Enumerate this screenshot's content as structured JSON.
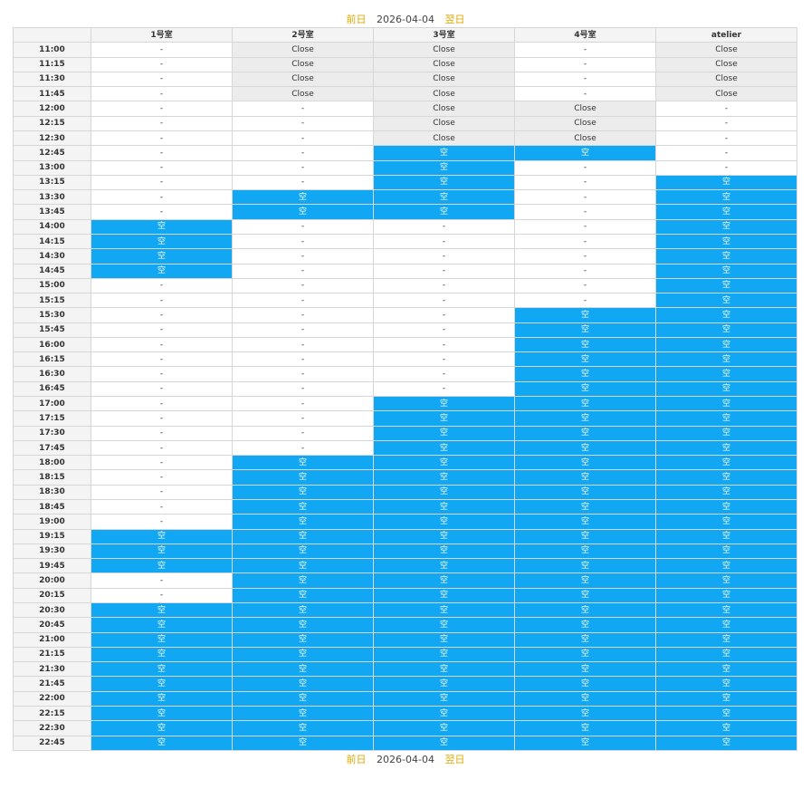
{
  "nav": {
    "prev_label": "前日",
    "date": "2026-04-04",
    "next_label": "翌日"
  },
  "table": {
    "corner_label": "",
    "rooms": [
      "1号室",
      "2号室",
      "3号室",
      "4号室",
      "atelier"
    ],
    "legend": {
      "none": "-",
      "close": "Close",
      "free": "空"
    },
    "colors": {
      "free": "#11a7f3",
      "close": "#ececec",
      "none": "#ffffff",
      "nav_link": "#e0a800"
    },
    "rows": [
      {
        "time": "11:00",
        "slots": [
          "none",
          "close",
          "close",
          "none",
          "close"
        ]
      },
      {
        "time": "11:15",
        "slots": [
          "none",
          "close",
          "close",
          "none",
          "close"
        ]
      },
      {
        "time": "11:30",
        "slots": [
          "none",
          "close",
          "close",
          "none",
          "close"
        ]
      },
      {
        "time": "11:45",
        "slots": [
          "none",
          "close",
          "close",
          "none",
          "close"
        ]
      },
      {
        "time": "12:00",
        "slots": [
          "none",
          "none",
          "close",
          "close",
          "none"
        ]
      },
      {
        "time": "12:15",
        "slots": [
          "none",
          "none",
          "close",
          "close",
          "none"
        ]
      },
      {
        "time": "12:30",
        "slots": [
          "none",
          "none",
          "close",
          "close",
          "none"
        ]
      },
      {
        "time": "12:45",
        "slots": [
          "none",
          "none",
          "free",
          "free",
          "none"
        ]
      },
      {
        "time": "13:00",
        "slots": [
          "none",
          "none",
          "free",
          "none",
          "none"
        ]
      },
      {
        "time": "13:15",
        "slots": [
          "none",
          "none",
          "free",
          "none",
          "free"
        ]
      },
      {
        "time": "13:30",
        "slots": [
          "none",
          "free",
          "free",
          "none",
          "free"
        ]
      },
      {
        "time": "13:45",
        "slots": [
          "none",
          "free",
          "free",
          "none",
          "free"
        ]
      },
      {
        "time": "14:00",
        "slots": [
          "free",
          "none",
          "none",
          "none",
          "free"
        ]
      },
      {
        "time": "14:15",
        "slots": [
          "free",
          "none",
          "none",
          "none",
          "free"
        ]
      },
      {
        "time": "14:30",
        "slots": [
          "free",
          "none",
          "none",
          "none",
          "free"
        ]
      },
      {
        "time": "14:45",
        "slots": [
          "free",
          "none",
          "none",
          "none",
          "free"
        ]
      },
      {
        "time": "15:00",
        "slots": [
          "none",
          "none",
          "none",
          "none",
          "free"
        ]
      },
      {
        "time": "15:15",
        "slots": [
          "none",
          "none",
          "none",
          "none",
          "free"
        ]
      },
      {
        "time": "15:30",
        "slots": [
          "none",
          "none",
          "none",
          "free",
          "free"
        ]
      },
      {
        "time": "15:45",
        "slots": [
          "none",
          "none",
          "none",
          "free",
          "free"
        ]
      },
      {
        "time": "16:00",
        "slots": [
          "none",
          "none",
          "none",
          "free",
          "free"
        ]
      },
      {
        "time": "16:15",
        "slots": [
          "none",
          "none",
          "none",
          "free",
          "free"
        ]
      },
      {
        "time": "16:30",
        "slots": [
          "none",
          "none",
          "none",
          "free",
          "free"
        ]
      },
      {
        "time": "16:45",
        "slots": [
          "none",
          "none",
          "none",
          "free",
          "free"
        ]
      },
      {
        "time": "17:00",
        "slots": [
          "none",
          "none",
          "free",
          "free",
          "free"
        ]
      },
      {
        "time": "17:15",
        "slots": [
          "none",
          "none",
          "free",
          "free",
          "free"
        ]
      },
      {
        "time": "17:30",
        "slots": [
          "none",
          "none",
          "free",
          "free",
          "free"
        ]
      },
      {
        "time": "17:45",
        "slots": [
          "none",
          "none",
          "free",
          "free",
          "free"
        ]
      },
      {
        "time": "18:00",
        "slots": [
          "none",
          "free",
          "free",
          "free",
          "free"
        ]
      },
      {
        "time": "18:15",
        "slots": [
          "none",
          "free",
          "free",
          "free",
          "free"
        ]
      },
      {
        "time": "18:30",
        "slots": [
          "none",
          "free",
          "free",
          "free",
          "free"
        ]
      },
      {
        "time": "18:45",
        "slots": [
          "none",
          "free",
          "free",
          "free",
          "free"
        ]
      },
      {
        "time": "19:00",
        "slots": [
          "none",
          "free",
          "free",
          "free",
          "free"
        ]
      },
      {
        "time": "19:15",
        "slots": [
          "free",
          "free",
          "free",
          "free",
          "free"
        ]
      },
      {
        "time": "19:30",
        "slots": [
          "free",
          "free",
          "free",
          "free",
          "free"
        ]
      },
      {
        "time": "19:45",
        "slots": [
          "free",
          "free",
          "free",
          "free",
          "free"
        ]
      },
      {
        "time": "20:00",
        "slots": [
          "none",
          "free",
          "free",
          "free",
          "free"
        ]
      },
      {
        "time": "20:15",
        "slots": [
          "none",
          "free",
          "free",
          "free",
          "free"
        ]
      },
      {
        "time": "20:30",
        "slots": [
          "free",
          "free",
          "free",
          "free",
          "free"
        ]
      },
      {
        "time": "20:45",
        "slots": [
          "free",
          "free",
          "free",
          "free",
          "free"
        ]
      },
      {
        "time": "21:00",
        "slots": [
          "free",
          "free",
          "free",
          "free",
          "free"
        ]
      },
      {
        "time": "21:15",
        "slots": [
          "free",
          "free",
          "free",
          "free",
          "free"
        ]
      },
      {
        "time": "21:30",
        "slots": [
          "free",
          "free",
          "free",
          "free",
          "free"
        ]
      },
      {
        "time": "21:45",
        "slots": [
          "free",
          "free",
          "free",
          "free",
          "free"
        ]
      },
      {
        "time": "22:00",
        "slots": [
          "free",
          "free",
          "free",
          "free",
          "free"
        ]
      },
      {
        "time": "22:15",
        "slots": [
          "free",
          "free",
          "free",
          "free",
          "free"
        ]
      },
      {
        "time": "22:30",
        "slots": [
          "free",
          "free",
          "free",
          "free",
          "free"
        ]
      },
      {
        "time": "22:45",
        "slots": [
          "free",
          "free",
          "free",
          "free",
          "free"
        ]
      }
    ]
  }
}
